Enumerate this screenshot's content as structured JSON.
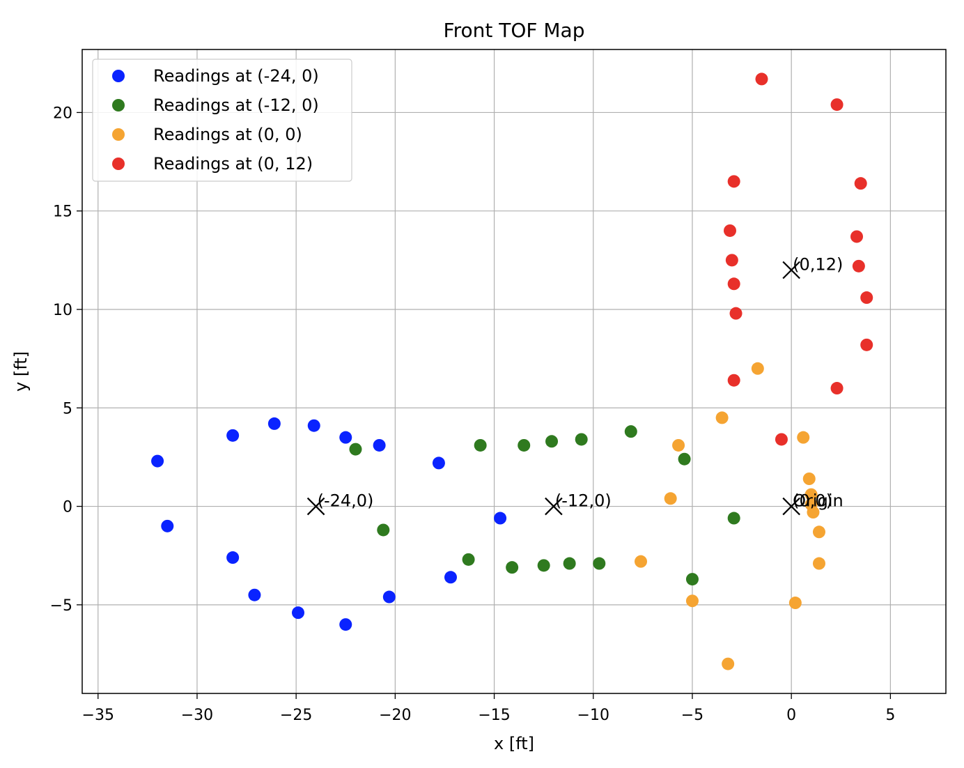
{
  "chart_data": {
    "type": "scatter",
    "title": "Front TOF Map",
    "xlabel": "x [ft]",
    "ylabel": "y [ft]",
    "xlim": [
      -35.8,
      7.8
    ],
    "ylim": [
      -9.5,
      23.2
    ],
    "xticks": [
      -35,
      -30,
      -25,
      -20,
      -15,
      -10,
      -5,
      0,
      5
    ],
    "yticks": [
      -5,
      0,
      5,
      10,
      15,
      20
    ],
    "xtick_labels": [
      "−35",
      "−30",
      "−25",
      "−20",
      "−15",
      "−10",
      "−5",
      "0",
      "5"
    ],
    "ytick_labels": [
      "−5",
      "0",
      "5",
      "10",
      "15",
      "20"
    ],
    "grid": true,
    "legend_position": "top-left",
    "series": [
      {
        "name": "Readings at (-24, 0)",
        "color": "#0a23ff",
        "points": [
          [
            -32.0,
            2.3
          ],
          [
            -31.5,
            -1.0
          ],
          [
            -28.2,
            3.6
          ],
          [
            -28.2,
            -2.6
          ],
          [
            -27.1,
            -4.5
          ],
          [
            -26.1,
            4.2
          ],
          [
            -24.9,
            -5.4
          ],
          [
            -24.1,
            4.1
          ],
          [
            -22.5,
            3.5
          ],
          [
            -22.5,
            -6.0
          ],
          [
            -20.8,
            3.1
          ],
          [
            -20.3,
            -4.6
          ],
          [
            -17.8,
            2.2
          ],
          [
            -17.2,
            -3.6
          ],
          [
            -14.7,
            -0.6
          ]
        ]
      },
      {
        "name": "Readings at (-12, 0)",
        "color": "#2f7a1f",
        "points": [
          [
            -22.0,
            2.9
          ],
          [
            -20.6,
            -1.2
          ],
          [
            -16.3,
            -2.7
          ],
          [
            -15.7,
            3.1
          ],
          [
            -14.1,
            -3.1
          ],
          [
            -13.5,
            3.1
          ],
          [
            -12.5,
            -3.0
          ],
          [
            -12.1,
            3.3
          ],
          [
            -11.2,
            -2.9
          ],
          [
            -10.6,
            3.4
          ],
          [
            -9.7,
            -2.9
          ],
          [
            -8.1,
            3.8
          ],
          [
            -5.4,
            2.4
          ],
          [
            -5.0,
            -3.7
          ],
          [
            -2.9,
            -0.6
          ]
        ]
      },
      {
        "name": "Readings at (0, 0)",
        "color": "#f5a432",
        "points": [
          [
            -7.6,
            -2.8
          ],
          [
            -6.1,
            0.4
          ],
          [
            -5.7,
            3.1
          ],
          [
            -5.0,
            -4.8
          ],
          [
            -3.5,
            4.5
          ],
          [
            -3.2,
            -8.0
          ],
          [
            -1.7,
            7.0
          ],
          [
            0.2,
            -4.9
          ],
          [
            0.6,
            3.5
          ],
          [
            0.9,
            1.4
          ],
          [
            1.0,
            0.6
          ],
          [
            1.0,
            0.1
          ],
          [
            1.1,
            -0.3
          ],
          [
            1.4,
            -1.3
          ],
          [
            1.4,
            -2.9
          ]
        ]
      },
      {
        "name": "Readings at (0, 12)",
        "color": "#e8302a",
        "points": [
          [
            -1.5,
            21.7
          ],
          [
            2.3,
            20.4
          ],
          [
            -2.9,
            16.5
          ],
          [
            3.5,
            16.4
          ],
          [
            -3.1,
            14.0
          ],
          [
            3.3,
            13.7
          ],
          [
            -3.0,
            12.5
          ],
          [
            3.4,
            12.2
          ],
          [
            -2.9,
            11.3
          ],
          [
            3.8,
            10.6
          ],
          [
            -2.8,
            9.8
          ],
          [
            3.8,
            8.2
          ],
          [
            -2.9,
            6.4
          ],
          [
            2.3,
            6.0
          ],
          [
            -0.5,
            3.4
          ]
        ]
      }
    ],
    "markers": [
      {
        "x": -24,
        "y": 0,
        "label": "(-24,0)"
      },
      {
        "x": -12,
        "y": 0,
        "label": "(-12,0)"
      },
      {
        "x": 0,
        "y": 0,
        "label": "(0,0)"
      },
      {
        "x": 0,
        "y": 0,
        "label": "Origin"
      },
      {
        "x": 0,
        "y": 12,
        "label": "(0,12)"
      }
    ]
  }
}
